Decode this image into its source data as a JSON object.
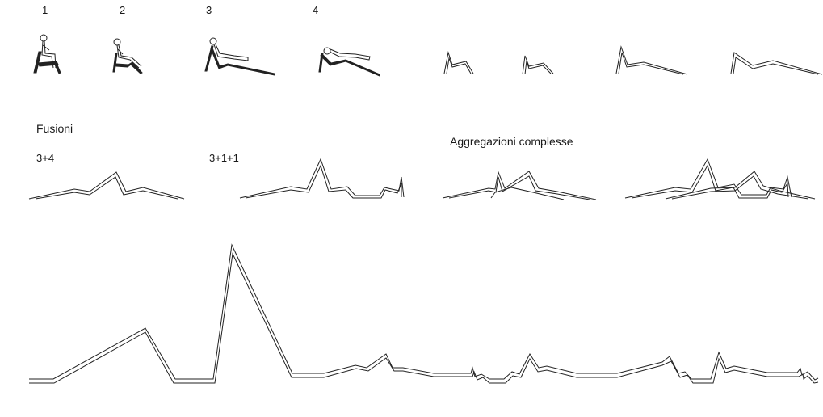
{
  "labels": {
    "seat_1": "1",
    "seat_2": "2",
    "seat_3": "3",
    "seat_4": "4",
    "fusions_heading": "Fusioni",
    "fusion_a": "3+4",
    "fusion_b": "3+1+1",
    "complex_heading": "Aggregazioni complesse"
  }
}
